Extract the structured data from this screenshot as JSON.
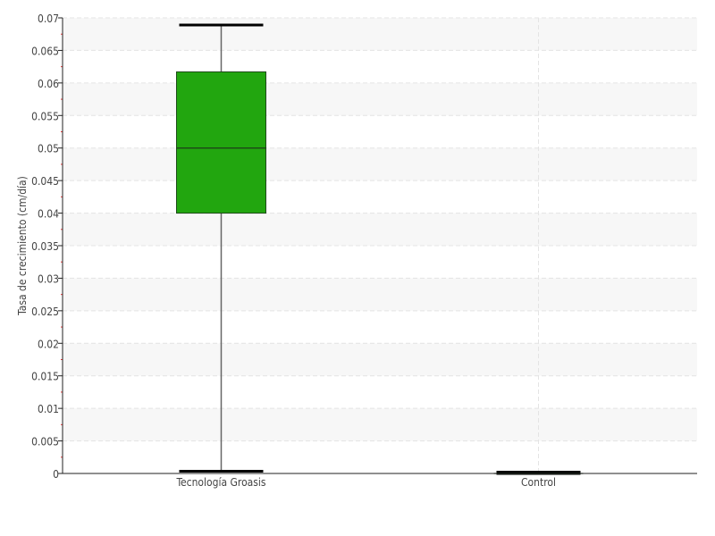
{
  "chart_data": {
    "type": "box",
    "title": "",
    "xlabel": "",
    "ylabel": "Tasa de crecimiento (cm/día)",
    "ylim": [
      0,
      0.07
    ],
    "yticks": [
      "0",
      "0.005",
      "0.01",
      "0.015",
      "0.02",
      "0.025",
      "0.03",
      "0.035",
      "0.04",
      "0.045",
      "0.05",
      "0.055",
      "0.06",
      "0.065",
      "0.07"
    ],
    "grid": true,
    "categories": [
      "Tecnología Groasis",
      "Control"
    ],
    "boxes": [
      {
        "category": "Tecnología Groasis",
        "min": 0.0002,
        "q1": 0.04,
        "median": 0.05,
        "q3": 0.0617,
        "max": 0.0689,
        "color": "#22a60f"
      },
      {
        "category": "Control",
        "min": 0,
        "q1": 0,
        "median": 0,
        "q3": 0,
        "max": 0,
        "color": "#22a60f"
      }
    ]
  }
}
